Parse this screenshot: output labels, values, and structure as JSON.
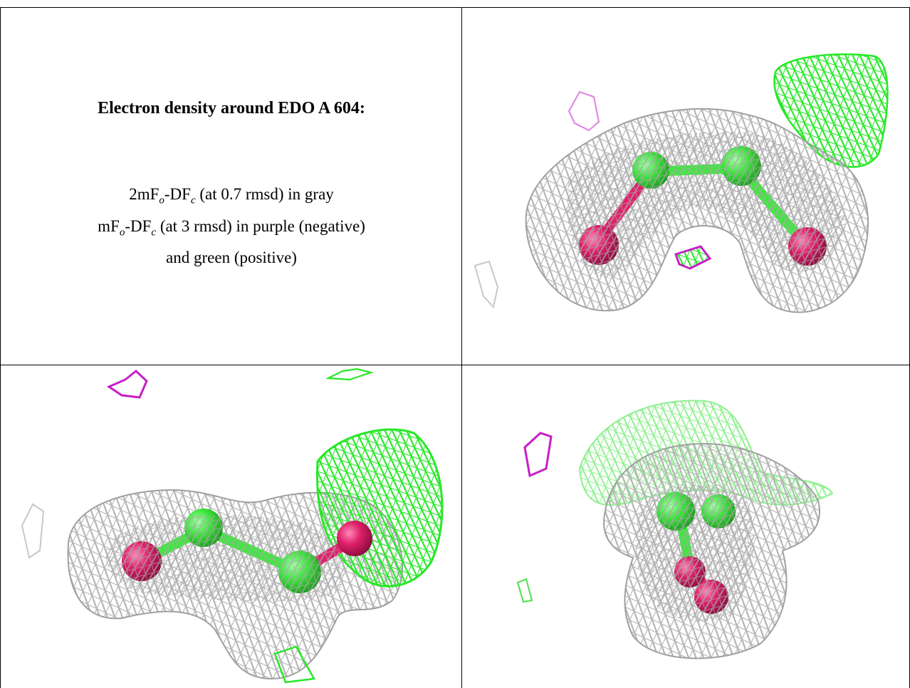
{
  "title": "Electron density around EDO A 604:",
  "legend": {
    "line1": {
      "pre": "2mF",
      "sub1": "o",
      "mid": "-DF",
      "sub2": "c",
      "post": " (at 0.7 rmsd) in gray"
    },
    "line2": {
      "pre": "mF",
      "sub1": "o",
      "mid": "-DF",
      "sub2": "c",
      "post": " (at 3 rmsd) in purple (negative)"
    },
    "line3": "and green (positive)"
  },
  "colors": {
    "mesh_2fofc": "#b4b4b4",
    "mesh_positive": "#27e827",
    "mesh_negative": "#c81ec8",
    "carbon": "#3ee83e",
    "oxygen": "#e0206a"
  }
}
